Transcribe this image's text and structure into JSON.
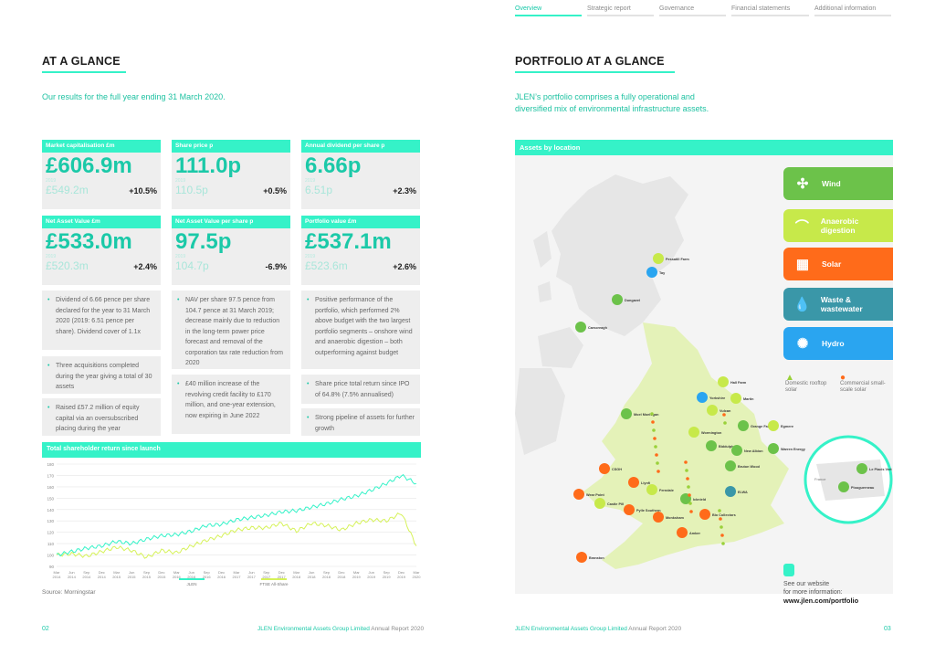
{
  "nav": {
    "tabs": [
      "Overview",
      "Strategic report",
      "Governance",
      "Financial statements",
      "Additional information"
    ]
  },
  "left": {
    "title": "AT A GLANCE",
    "intro": "Our results for the full year ending 31 March 2020.",
    "kpis": [
      {
        "label": "Market capitalisation £m",
        "value": "£606.9m",
        "prev_label": "2019",
        "prev": "£549.2m",
        "change": "+10.5%"
      },
      {
        "label": "Share price p",
        "value": "111.0p",
        "prev_label": "2019",
        "prev": "110.5p",
        "change": "+0.5%"
      },
      {
        "label": "Annual dividend per share p",
        "value": "6.66p",
        "prev_label": "2019",
        "prev": "6.51p",
        "change": "+2.3%"
      },
      {
        "label": "Net Asset Value £m",
        "value": "£533.0m",
        "prev_label": "2019",
        "prev": "£520.3m",
        "change": "+2.4%"
      },
      {
        "label": "Net Asset Value per share p",
        "value": "97.5p",
        "prev_label": "2019",
        "prev": "104.7p",
        "change": "-6.9%"
      },
      {
        "label": "Portfolio value £m",
        "value": "£537.1m",
        "prev_label": "2019",
        "prev": "£523.6m",
        "change": "+2.6%"
      }
    ],
    "bullets": [
      "Dividend of 6.66 pence per share declared for the year to 31 March 2020 (2019: 6.51 pence per share). Dividend cover of 1.1x",
      "Three acquisitions completed during the year giving a total of 30 assets",
      "Raised £57.2 million of equity capital via an oversubscribed placing during the year",
      "NAV per share 97.5 pence from 104.7 pence at 31 March 2019; decrease mainly due to reduction in the long-term power price forecast and removal of the corporation tax rate reduction from 2020",
      "£40 million increase of the revolving credit facility to £170 million, and one-year extension, now expiring in June 2022",
      "Positive performance of the portfolio, which performed 2% above budget with the two largest portfolio segments – onshore wind and anaerobic digestion – both outperforming against budget",
      "Share price total return since IPO of 64.8% (7.5% annualised)",
      "Strong pipeline of assets for further growth"
    ],
    "chart_title": "Total shareholder return since launch",
    "source": "Source: Morningstar",
    "footer_text": "JLEN Environmental Assets Group Limited",
    "footer_report": "Annual Report 2020",
    "page_number": "02"
  },
  "chart_data": {
    "type": "line",
    "title": "Total shareholder return since launch",
    "ylim": [
      90,
      180
    ],
    "y_ticks": [
      90,
      100,
      110,
      120,
      130,
      140,
      150,
      160,
      170,
      180
    ],
    "x_ticks": [
      "Mar 2014",
      "Jun 2014",
      "Sep 2014",
      "Dec 2014",
      "Mar 2015",
      "Jun 2015",
      "Sep 2015",
      "Dec 2015",
      "Mar 2016",
      "Jun 2016",
      "Sep 2016",
      "Dec 2016",
      "Mar 2017",
      "Jun 2017",
      "Sep 2017",
      "Dec 2017",
      "Mar 2018",
      "Jun 2018",
      "Sep 2018",
      "Dec 2018",
      "Mar 2019",
      "Jun 2019",
      "Sep 2019",
      "Dec 2019",
      "Mar 2020"
    ],
    "series": [
      {
        "name": "JLEN",
        "color": "#35f2c8",
        "values": [
          100,
          103,
          106,
          108,
          112,
          110,
          114,
          117,
          118,
          121,
          126,
          127,
          131,
          133,
          135,
          138,
          139,
          142,
          145,
          149,
          152,
          157,
          163,
          170,
          163
        ]
      },
      {
        "name": "FTSE All-Share",
        "color": "#d6f25a",
        "values": [
          100,
          101,
          99,
          103,
          107,
          104,
          98,
          104,
          102,
          108,
          113,
          117,
          122,
          124,
          124,
          128,
          121,
          128,
          126,
          122,
          128,
          131,
          130,
          137,
          108
        ]
      }
    ]
  },
  "right": {
    "title": "PORTFOLIO AT A GLANCE",
    "intro_line1": "JLEN’s portfolio comprises a fully operational and",
    "intro_line2": "diversified mix of environmental infrastructure assets.",
    "map_title": "Assets by location",
    "legend": [
      {
        "label": "Wind",
        "color": "#6cc24a",
        "icon": "wind-turbine-icon"
      },
      {
        "label": "Anaerobic digestion",
        "color": "#c7e94a",
        "icon": "dome-icon"
      },
      {
        "label": "Solar",
        "color": "#ff6b1a",
        "icon": "solar-panel-icon"
      },
      {
        "label": "Waste & wastewater",
        "color": "#3a97a8",
        "icon": "water-drops-icon"
      },
      {
        "label": "Hydro",
        "color": "#2aa5f0",
        "icon": "water-wheel-icon"
      }
    ],
    "sub_legend": [
      {
        "label": "Domestic rooftop solar",
        "color": "#c7e94a"
      },
      {
        "label": "Commercial small-scale solar",
        "color": "#ff6b1a"
      }
    ],
    "sites": [
      "Pessatill Farm",
      "Tay",
      "Dungavel",
      "Carscreagh",
      "Hall Farm",
      "Yorkshire",
      "Martin",
      "Vulcan",
      "Grange Farm",
      "Egmere",
      "Moel Moelogan",
      "Wormington",
      "Biddulph",
      "New Albion",
      "Warren Energy",
      "Bruton Wood",
      "CSGH",
      "Llynfi",
      "Ferndale",
      "Icknield",
      "ELWA",
      "Wear Point",
      "Castle Pill",
      "Pylle Southern",
      "Bio Collectors",
      "Monksham",
      "Amber",
      "Branston",
      "Plouguerneau",
      "Le Placis Vert",
      "France"
    ],
    "website_label1": "See our website",
    "website_label2": "for more information:",
    "website_url": "www.jlen.com/portfolio",
    "footer_text": "JLEN Environmental Assets Group Limited",
    "footer_report": "Annual Report 2020",
    "page_number": "03"
  }
}
